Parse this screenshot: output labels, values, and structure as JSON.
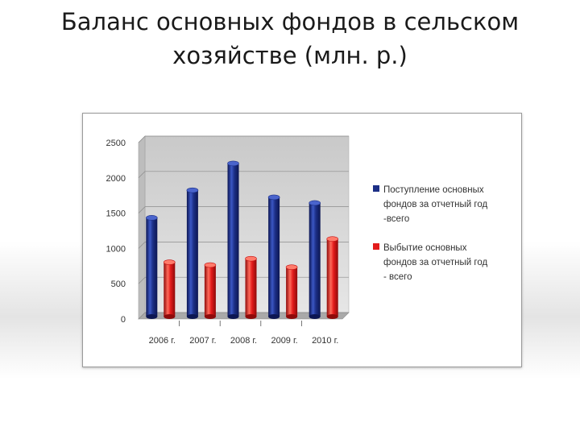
{
  "slide": {
    "title_line1": "Баланс основных фондов в сельском",
    "title_line2": "хозяйстве (млн. р.)"
  },
  "chart_data": {
    "type": "bar",
    "categories": [
      "2006 г.",
      "2007 г.",
      "2008 г.",
      "2009 г.",
      "2010 г."
    ],
    "series": [
      {
        "name_lines": [
          "Поступление основных",
          "фондов за отчетный год",
          "-всего"
        ],
        "color": "#1c2f86",
        "values": [
          1400,
          1790,
          2170,
          1690,
          1610
        ]
      },
      {
        "name_lines": [
          "Выбытие основных",
          "фондов за отчетный год",
          "- всего"
        ],
        "color": "#e31b1b",
        "values": [
          770,
          730,
          820,
          700,
          1100
        ]
      }
    ],
    "ylim": [
      0,
      2500
    ],
    "yticks": [
      0,
      500,
      1000,
      1500,
      2000,
      2500
    ],
    "grid": true,
    "legend_position": "right",
    "style": "3d-cylinder"
  }
}
